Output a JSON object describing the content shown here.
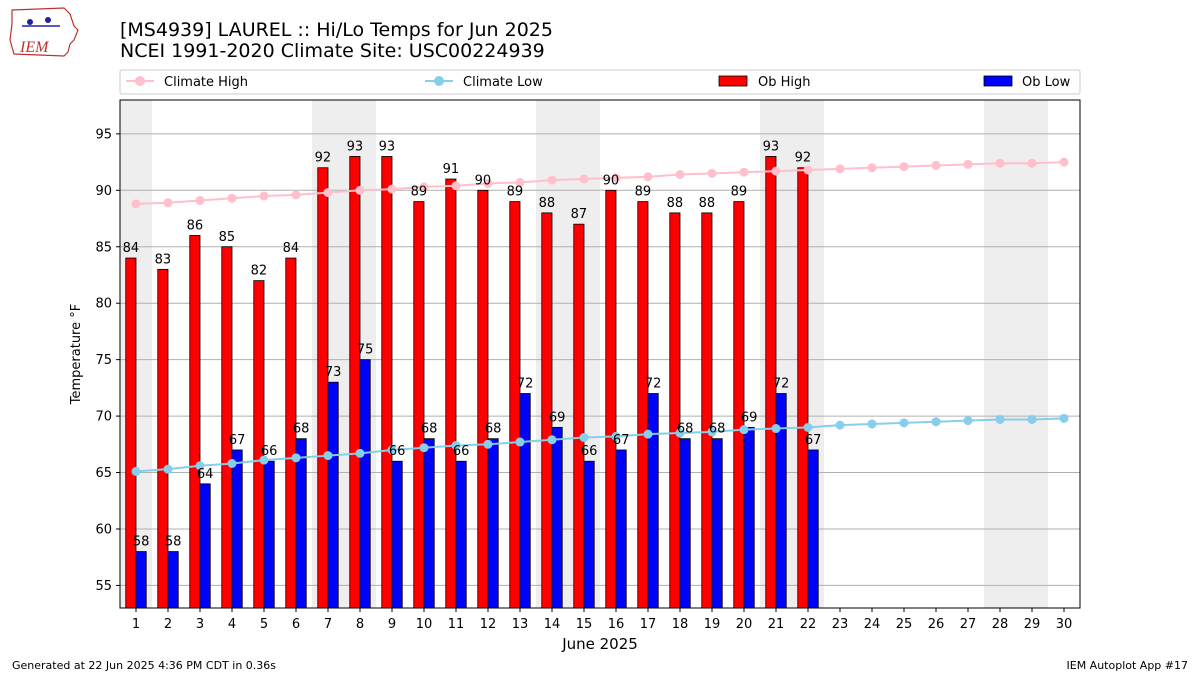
{
  "header": {
    "title_line1": "[MS4939] LAUREL :: Hi/Lo Temps for Jun 2025",
    "title_line2": "NCEI 1991-2020 Climate Site: USC00224939",
    "logo_text": "IEM"
  },
  "footer": {
    "left": "Generated at 22 Jun 2025 4:36 PM CDT in 0.36s",
    "right": "IEM Autoplot App #17"
  },
  "colors": {
    "ob_high": "#ff0000",
    "ob_low": "#0000ff",
    "climate_high": "#ffc0cb",
    "climate_low": "#87ceeb",
    "weekend_shade": "#eeeeee",
    "grid": "#b0b0b0"
  },
  "chart_data": {
    "type": "bar",
    "xlabel": "June 2025",
    "ylabel": "Temperature °F",
    "ylim": [
      53,
      98
    ],
    "yticks": [
      55,
      60,
      65,
      70,
      75,
      80,
      85,
      90,
      95
    ],
    "grid": "horizontal",
    "legend_position": "top",
    "days": [
      1,
      2,
      3,
      4,
      5,
      6,
      7,
      8,
      9,
      10,
      11,
      12,
      13,
      14,
      15,
      16,
      17,
      18,
      19,
      20,
      21,
      22,
      23,
      24,
      25,
      26,
      27,
      28,
      29,
      30
    ],
    "weekend_days": [
      1,
      7,
      8,
      14,
      15,
      21,
      22,
      28,
      29
    ],
    "series": [
      {
        "name": "Climate High",
        "kind": "line",
        "values": [
          88.8,
          88.9,
          89.1,
          89.3,
          89.5,
          89.6,
          89.8,
          90.0,
          90.1,
          90.3,
          90.4,
          90.6,
          90.7,
          90.9,
          91.0,
          91.1,
          91.2,
          91.4,
          91.5,
          91.6,
          91.7,
          91.8,
          91.9,
          92.0,
          92.1,
          92.2,
          92.3,
          92.4,
          92.4,
          92.5
        ]
      },
      {
        "name": "Climate Low",
        "kind": "line",
        "values": [
          65.1,
          65.3,
          65.6,
          65.8,
          66.1,
          66.3,
          66.5,
          66.7,
          67.0,
          67.2,
          67.4,
          67.5,
          67.7,
          67.9,
          68.1,
          68.2,
          68.4,
          68.5,
          68.6,
          68.8,
          68.9,
          69.0,
          69.2,
          69.3,
          69.4,
          69.5,
          69.6,
          69.7,
          69.7,
          69.8
        ]
      },
      {
        "name": "Ob High",
        "kind": "bar",
        "values": [
          84,
          83,
          86,
          85,
          82,
          84,
          92,
          93,
          93,
          89,
          91,
          90,
          89,
          88,
          87,
          90,
          89,
          88,
          88,
          89,
          93,
          92
        ]
      },
      {
        "name": "Ob Low",
        "kind": "bar",
        "values": [
          58,
          58,
          64,
          67,
          66,
          68,
          73,
          75,
          66,
          68,
          66,
          68,
          72,
          69,
          66,
          67,
          72,
          68,
          68,
          69,
          72,
          67
        ]
      }
    ]
  }
}
